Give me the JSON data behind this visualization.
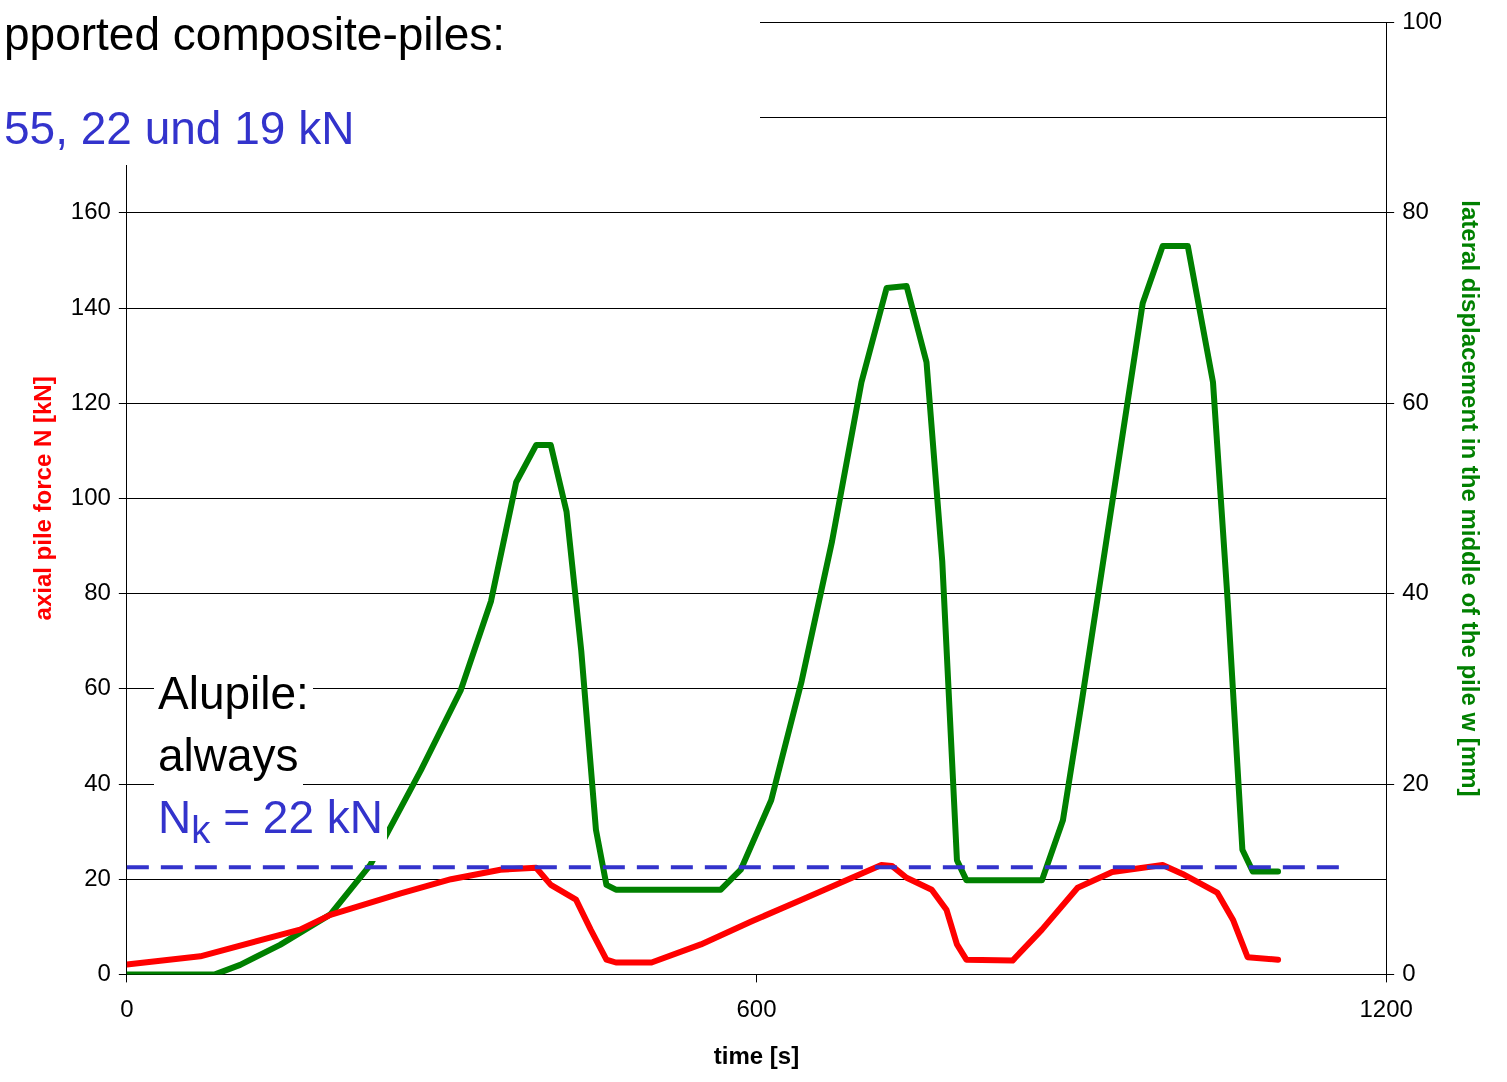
{
  "chart_data": {
    "type": "line",
    "annotations": [
      "pported composite-piles:",
      "55, 22 und 19 kN",
      "Alupile:",
      "always",
      "N$_{k}$ = 22 kN"
    ],
    "xlabel": "time [s]",
    "ylabel": "axial pile force N [kN]",
    "y2label": "lateral displacement in the middle of the pile w [mm]",
    "xlim": [
      0,
      1200
    ],
    "xticks": [
      0,
      600,
      1200
    ],
    "ylim": [
      0,
      200
    ],
    "yticks": [
      0,
      20,
      40,
      60,
      80,
      100,
      120,
      140,
      160,
      {
        "value": 180,
        "label": null
      },
      {
        "value": 200,
        "label": null
      }
    ],
    "y2lim": [
      0,
      100
    ],
    "y2ticks": [
      0,
      20,
      40,
      60,
      80,
      100
    ],
    "grid": "y",
    "legend": false,
    "marker": "none",
    "line_style": "solid",
    "ref_lines": [
      {
        "axis": "y",
        "value": 22.5,
        "color": "#3333cc",
        "line_style": "dashed"
      }
    ],
    "series": [
      {
        "color": "#ff0000",
        "x": [
          0,
          70,
          165,
          194,
          261,
          309,
          356,
          390,
          404,
          428,
          442,
          457,
          466,
          500,
          547,
          595,
          643,
          691,
          719,
          729,
          743,
          767,
          781,
          791,
          800,
          844,
          872,
          906,
          939,
          987,
          1006,
          1039,
          1054,
          1068,
          1097
        ],
        "values": [
          2.1,
          3.8,
          9.4,
          12.5,
          17,
          20,
          22,
          22.4,
          18.8,
          15.7,
          9.4,
          3.1,
          2.5,
          2.5,
          6.3,
          11.1,
          15.7,
          20.3,
          23,
          22.8,
          20.3,
          17.8,
          13.6,
          6.3,
          3.1,
          2.9,
          9.4,
          18.2,
          21.5,
          23,
          21.1,
          17.2,
          11.5,
          3.6,
          3.1
        ]
      },
      {
        "color": "#008000",
        "axis": "y2",
        "x": [
          0,
          84,
          108,
          146,
          194,
          232,
          280,
          318,
          347,
          371,
          390,
          404,
          419,
          433,
          447,
          457,
          466,
          566,
          585,
          614,
          643,
          672,
          700,
          724,
          743,
          762,
          777,
          791,
          800,
          872,
          892,
          910,
          939,
          968,
          987,
          1011,
          1035,
          1049,
          1063,
          1073,
          1097
        ],
        "values": [
          0,
          0,
          1,
          3.1,
          6.3,
          11.5,
          21.4,
          29.8,
          39.2,
          51.7,
          55.6,
          55.6,
          48.6,
          34,
          15.2,
          9.4,
          8.9,
          8.9,
          11,
          18.3,
          30.8,
          45.5,
          62.2,
          72.1,
          72.3,
          64.3,
          43.4,
          12,
          9.9,
          9.9,
          16.2,
          28.7,
          49.6,
          70.5,
          76.5,
          76.5,
          62.2,
          39.2,
          13.1,
          10.8,
          10.8
        ]
      }
    ]
  }
}
